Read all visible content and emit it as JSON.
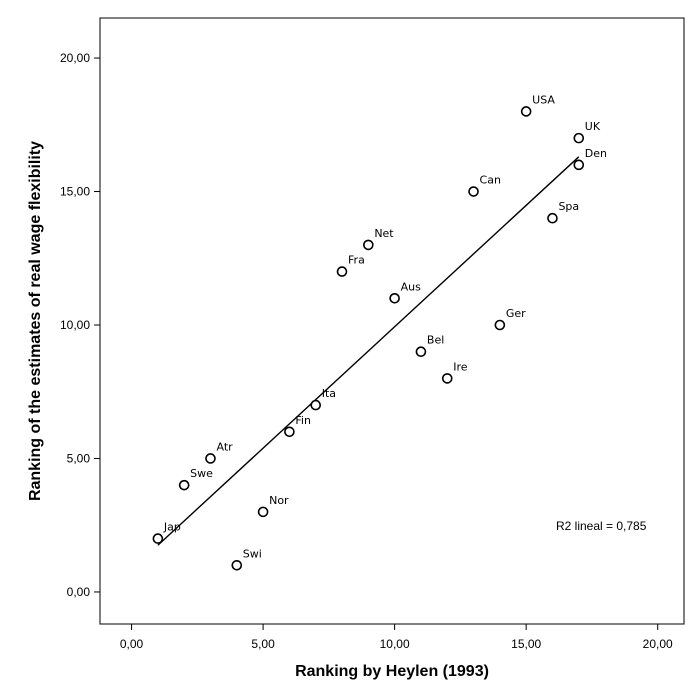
{
  "chart_data": {
    "type": "scatter",
    "xlabel": "Ranking by Heylen (1993)",
    "ylabel": "Ranking of the estimates of real wage flexibility",
    "xlim": [
      -1.2,
      21.0
    ],
    "ylim": [
      -1.2,
      21.5
    ],
    "x_ticks": [
      "0,00",
      "5,00",
      "10,00",
      "15,00",
      "20,00"
    ],
    "y_ticks": [
      "0,00",
      "5,00",
      "10,00",
      "15,00",
      "20,00"
    ],
    "grid": false,
    "legend": "none",
    "marker_color": "#000000",
    "points": [
      {
        "label": "Jap",
        "x": 1,
        "y": 2
      },
      {
        "label": "Swe",
        "x": 2,
        "y": 4
      },
      {
        "label": "Atr",
        "x": 3,
        "y": 5
      },
      {
        "label": "Swi",
        "x": 4,
        "y": 1
      },
      {
        "label": "Nor",
        "x": 5,
        "y": 3
      },
      {
        "label": "Fin",
        "x": 6,
        "y": 6
      },
      {
        "label": "Ita",
        "x": 7,
        "y": 7
      },
      {
        "label": "Fra",
        "x": 8,
        "y": 12
      },
      {
        "label": "Net",
        "x": 9,
        "y": 13
      },
      {
        "label": "Aus",
        "x": 10,
        "y": 11
      },
      {
        "label": "Bel",
        "x": 11,
        "y": 9
      },
      {
        "label": "Ire",
        "x": 12,
        "y": 8
      },
      {
        "label": "Can",
        "x": 13,
        "y": 15
      },
      {
        "label": "Ger",
        "x": 14,
        "y": 10
      },
      {
        "label": "USA",
        "x": 15,
        "y": 18
      },
      {
        "label": "Spa",
        "x": 16,
        "y": 14
      },
      {
        "label": "UK",
        "x": 17,
        "y": 17
      },
      {
        "label": "Den",
        "x": 17,
        "y": 16
      }
    ],
    "fit_line": {
      "x_start": 1,
      "y_start": 1.75,
      "x_end": 17,
      "y_end": 16.3
    },
    "annotation": "R2 lineal = 0,785"
  }
}
